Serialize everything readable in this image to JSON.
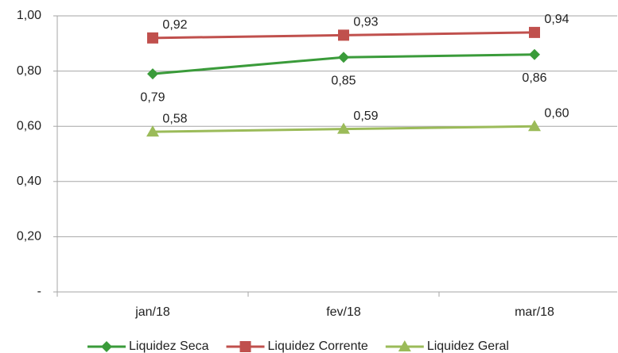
{
  "chart_data": {
    "type": "line",
    "categories": [
      "jan/18",
      "fev/18",
      "mar/18"
    ],
    "series": [
      {
        "name": "Liquidez Seca",
        "color": "#3a9b3a",
        "marker": "diamond",
        "values": [
          0.79,
          0.85,
          0.86
        ],
        "value_labels": [
          "0,79",
          "0,85",
          "0,86"
        ]
      },
      {
        "name": "Liquidez Corrente",
        "color": "#c0504d",
        "marker": "square",
        "values": [
          0.92,
          0.93,
          0.94
        ],
        "value_labels": [
          "0,92",
          "0,93",
          "0,94"
        ]
      },
      {
        "name": "Liquidez Geral",
        "color": "#9bbb59",
        "marker": "triangle",
        "values": [
          0.58,
          0.59,
          0.6
        ],
        "value_labels": [
          "0,58",
          "0,59",
          "0,60"
        ]
      }
    ],
    "ylim": [
      0,
      1
    ],
    "yticks": [
      {
        "value": 0,
        "label": "-"
      },
      {
        "value": 0.2,
        "label": "0,20"
      },
      {
        "value": 0.4,
        "label": "0,40"
      },
      {
        "value": 0.6,
        "label": "0,60"
      },
      {
        "value": 0.8,
        "label": "0,80"
      },
      {
        "value": 1,
        "label": "1,00"
      }
    ],
    "grid": true,
    "legend": "bottom"
  }
}
